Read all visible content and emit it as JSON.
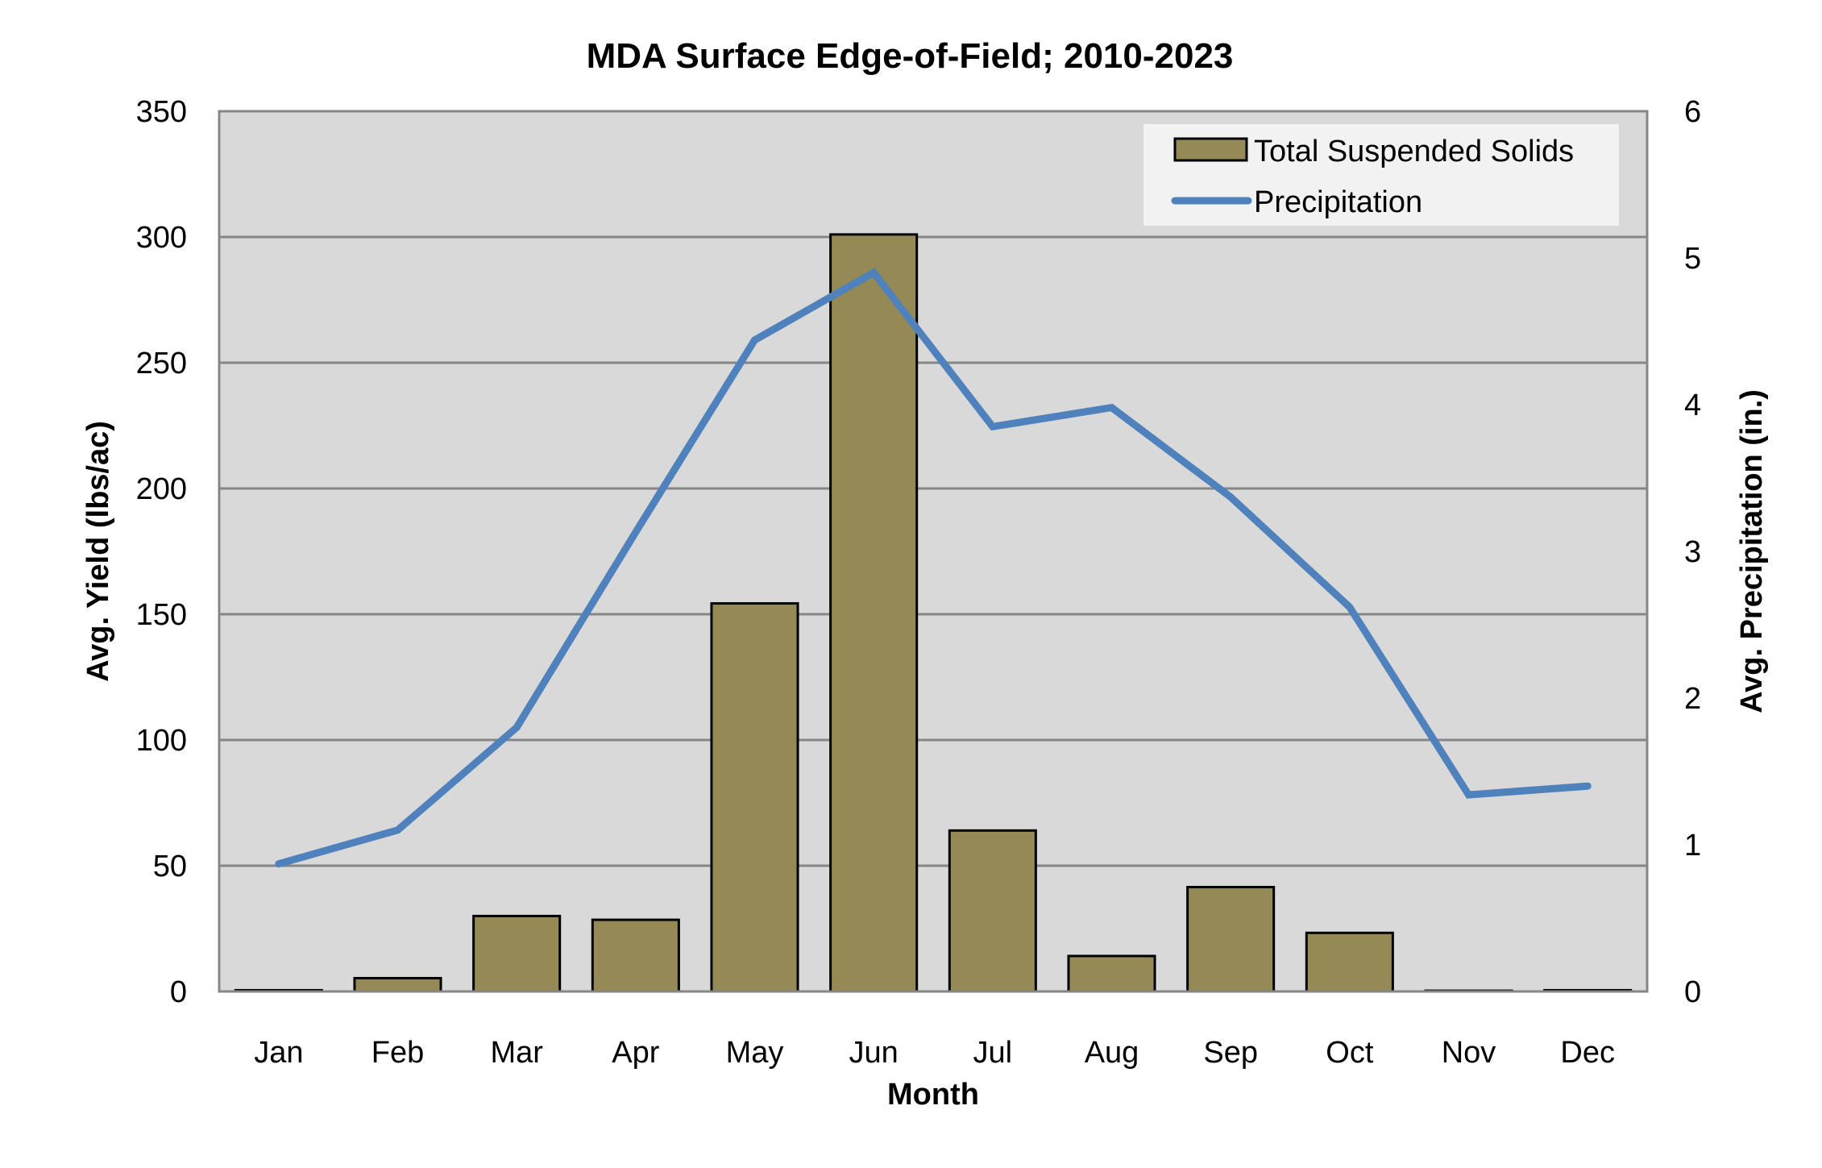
{
  "chart_data": {
    "type": "bar",
    "title": "MDA Surface Edge-of-Field; 2010-2023",
    "xlabel": "Month",
    "ylabel": "Avg. Yield (lbs/ac)",
    "y2label": "Avg. Precipitation (in.)",
    "categories": [
      "Jan",
      "Feb",
      "Mar",
      "Apr",
      "May",
      "Jun",
      "Jul",
      "Aug",
      "Sep",
      "Oct",
      "Nov",
      "Dec"
    ],
    "ylim": [
      0,
      350
    ],
    "yticks": [
      0,
      50,
      100,
      150,
      200,
      250,
      300,
      350
    ],
    "y2lim": [
      0,
      6
    ],
    "y2ticks": [
      0,
      1,
      2,
      3,
      4,
      5,
      6
    ],
    "grid": true,
    "legend_position": "top-right",
    "series": [
      {
        "name": "Total Suspended Solids",
        "type": "bar",
        "axis": "left",
        "color": "#958A55",
        "values": [
          0.5,
          5.3,
          30,
          28.5,
          154.3,
          301,
          64,
          14.1,
          41.5,
          23.3,
          0.3,
          0.5
        ]
      },
      {
        "name": "Precipitation",
        "type": "line",
        "axis": "right",
        "color": "#4F81BD",
        "values": [
          0.87,
          1.1,
          1.8,
          3.13,
          4.44,
          4.9,
          3.85,
          3.98,
          3.37,
          2.62,
          1.34,
          1.4
        ]
      }
    ]
  },
  "colors": {
    "plot_background": "#D9D9D9",
    "gridline": "#868686",
    "legend_background": "#F2F2F2",
    "bar_outline": "#000000"
  }
}
